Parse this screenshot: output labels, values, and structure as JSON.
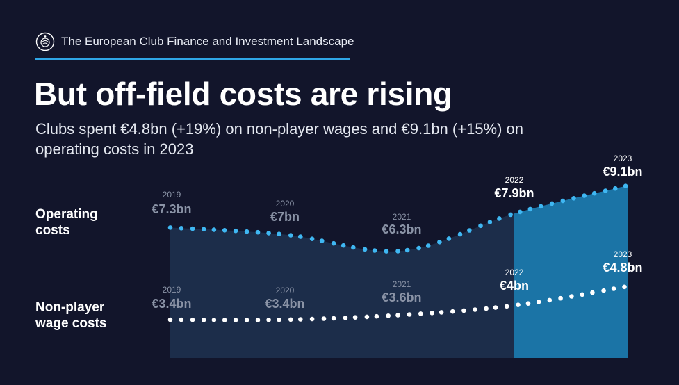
{
  "header": {
    "title": "The European Club Finance and Investment Landscape",
    "logo_icon": "uefa-logo-icon"
  },
  "headline": "But off-field costs are rising",
  "subtitle": "Clubs spent €4.8bn (+19%) on non-player wages and €9.1bn (+15%) on operating costs in 2023",
  "row_labels": {
    "operating": "Operating costs",
    "non_player": "Non-player wage costs"
  },
  "colors": {
    "background": "#12152b",
    "accent": "#2fa6e6",
    "area_past": "#1c2d4a",
    "area_latest": "#1b74a6",
    "dim_label": "#8a93a6",
    "bright_label": "#ffffff"
  },
  "chart_data": {
    "type": "line",
    "x": [
      "2019",
      "2020",
      "2021",
      "2022",
      "2023"
    ],
    "highlight_from": "2022",
    "series": [
      {
        "name": "Operating costs",
        "values": [
          7.3,
          7.0,
          6.3,
          7.9,
          9.1
        ],
        "labels": [
          "€7.3bn",
          "€7bn",
          "€6.3bn",
          "€7.9bn",
          "€9.1bn"
        ],
        "color": "#3fb7f2"
      },
      {
        "name": "Non-player wage costs",
        "values": [
          3.4,
          3.4,
          3.6,
          4.0,
          4.8
        ],
        "labels": [
          "€3.4bn",
          "€3.4bn",
          "€3.6bn",
          "€4bn",
          "€4.8bn"
        ],
        "color": "#ffffff"
      }
    ]
  }
}
